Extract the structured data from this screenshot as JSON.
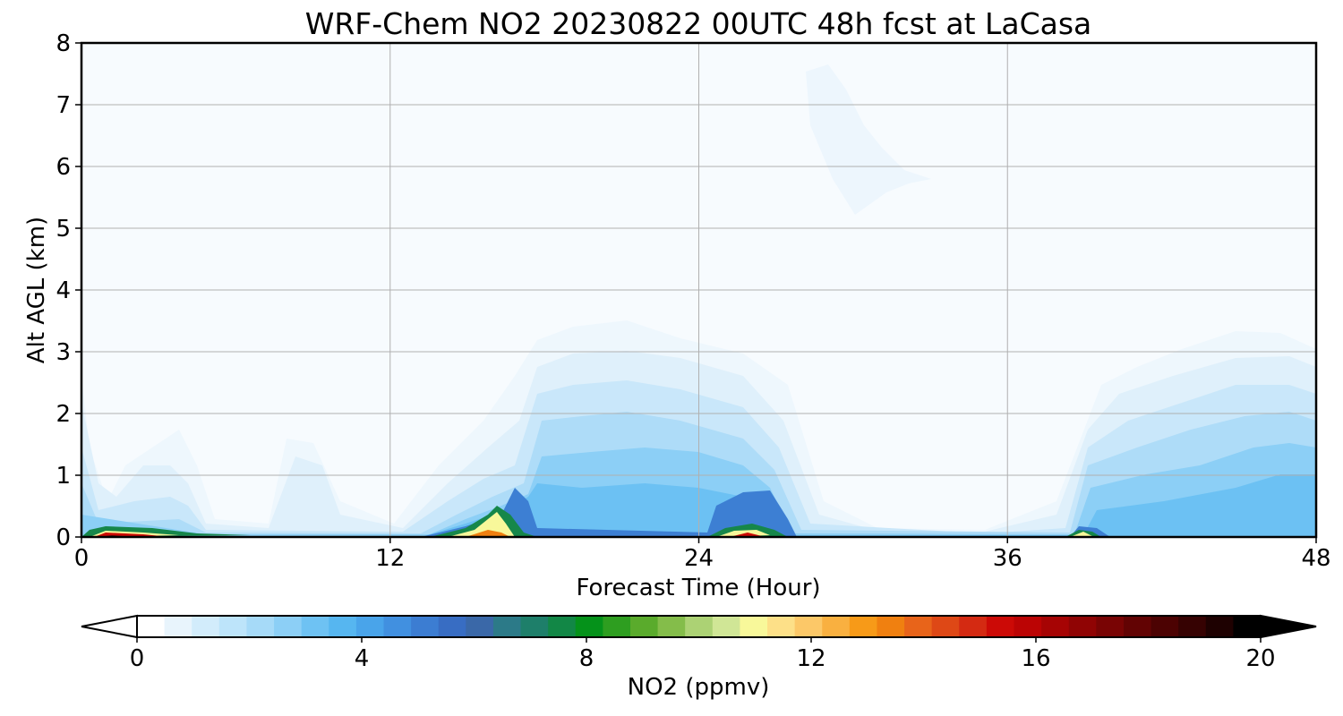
{
  "chart_data": {
    "type": "heatmap",
    "title": "WRF-Chem NO2  20230822 00UTC 48h fcst at LaCasa",
    "xlabel": "Forecast Time (Hour)",
    "ylabel": "Alt AGL (km)",
    "xlim": [
      0,
      48
    ],
    "ylim": [
      0,
      8
    ],
    "x_ticks": [
      0,
      12,
      24,
      36,
      48
    ],
    "y_ticks": [
      0,
      1,
      2,
      3,
      4,
      5,
      6,
      7,
      8
    ],
    "grid": true,
    "colorbar": {
      "label": "NO2  (ppmv)",
      "range": [
        0,
        20
      ],
      "ticks": [
        0,
        4,
        8,
        12,
        16,
        20
      ],
      "extend": "both",
      "orientation": "horizontal",
      "colors": [
        "#ffffff",
        "#e8f4fc",
        "#d2ecfb",
        "#bde4fa",
        "#a6daf8",
        "#8ccff6",
        "#6ec2f3",
        "#56b6f0",
        "#49a4ea",
        "#4190e0",
        "#3c7dd2",
        "#386dc3",
        "#3a68a8",
        "#2c7a88",
        "#1e7f6a",
        "#128746",
        "#05921a",
        "#2e9e20",
        "#5aab2c",
        "#84bd4a",
        "#acd274",
        "#d0e696",
        "#f8f89a",
        "#fde088",
        "#fcc868",
        "#f9b040",
        "#f79a18",
        "#f08010",
        "#e8641a",
        "#de4816",
        "#d42a12",
        "#cc0a06",
        "#bb0404",
        "#a60404",
        "#900404",
        "#790404",
        "#620303",
        "#4c0202",
        "#360202",
        "#1e0101",
        "#000000"
      ]
    },
    "field_description": "NO2 mixing ratio vs forecast hour (0-48) and altitude above ground (0-8 km)",
    "features": [
      {
        "x": [
          0,
          3
        ],
        "y_top": 0.1,
        "peak": 18
      },
      {
        "x": [
          14,
          17
        ],
        "y_top": 0.5,
        "peak": 11
      },
      {
        "x": [
          25,
          27
        ],
        "y_top": 0.2,
        "peak": 16
      },
      {
        "x": [
          38,
          39.5
        ],
        "y_top": 0.15,
        "peak": 10
      }
    ]
  }
}
